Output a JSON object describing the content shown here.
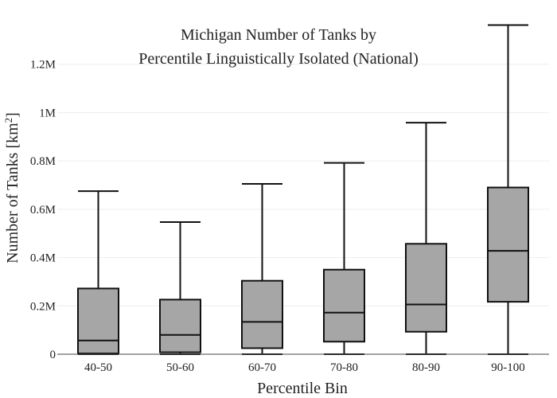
{
  "chart_data": {
    "type": "box",
    "title_lines": [
      "Michigan Number of Tanks by",
      "Percentile Linguistically Isolated (National)"
    ],
    "xlabel": "Percentile Bin",
    "ylabel": "Number of Tanks",
    "ylabel_unit_base": "[km",
    "ylabel_unit_exp": "2",
    "ylabel_unit_close": "]",
    "ylim": [
      0,
      1400000
    ],
    "yticks": [
      {
        "value": 0,
        "label": "0"
      },
      {
        "value": 200000,
        "label": "0.2M"
      },
      {
        "value": 400000,
        "label": "0.4M"
      },
      {
        "value": 600000,
        "label": "0.6M"
      },
      {
        "value": 800000,
        "label": "0.8M"
      },
      {
        "value": 1000000,
        "label": "1M"
      },
      {
        "value": 1200000,
        "label": "1.2M"
      }
    ],
    "grid": true,
    "box_color": "#a6a6a6",
    "line_color": "#111111",
    "categories": [
      "40-50",
      "50-60",
      "60-70",
      "70-80",
      "80-90",
      "90-100"
    ],
    "boxes": [
      {
        "min": 0,
        "q1": 3000,
        "median": 57000,
        "q3": 272000,
        "max": 675000
      },
      {
        "min": 0,
        "q1": 8000,
        "median": 80000,
        "q3": 226000,
        "max": 547000
      },
      {
        "min": 0,
        "q1": 25000,
        "median": 134000,
        "q3": 304000,
        "max": 705000
      },
      {
        "min": 0,
        "q1": 52000,
        "median": 172000,
        "q3": 350000,
        "max": 792000
      },
      {
        "min": 0,
        "q1": 93000,
        "median": 206000,
        "q3": 457000,
        "max": 958000
      },
      {
        "min": 0,
        "q1": 217000,
        "median": 428000,
        "q3": 690000,
        "max": 1362000
      }
    ]
  }
}
